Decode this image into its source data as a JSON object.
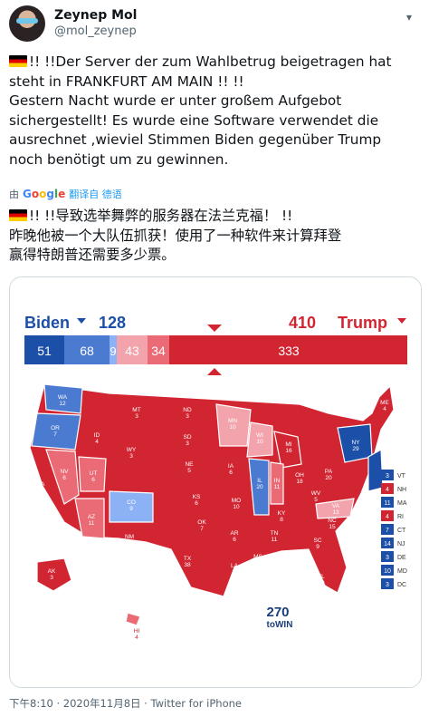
{
  "author": {
    "display_name": "Zeynep Mol",
    "handle": "@mol_zeynep"
  },
  "tweet": {
    "de_lines": [
      "!! !!Der Server der zum Wahlbetrug beigetragen hat",
      "steht in FRANKFURT AM MAIN !! !!",
      "Gestern Nacht wurde er unter großem Aufgebot",
      "sichergestellt! Es wurde eine Software verwendet die",
      "ausrechnet ,wieviel Stimmen Biden gegenüber Trump",
      "noch benötigt um zu gewinnen."
    ],
    "translate_prefix": "由",
    "translate_link": "翻译自 德语",
    "zh_lines": [
      "!! !!导致选举舞弊的服务器在法兰克福！ !!",
      "昨晚他被一个大队伍抓获！使用了一种软件来计算拜登",
      "赢得特朗普还需要多少票。"
    ]
  },
  "map_image": {
    "biden_label": "Biden",
    "biden_total": "128",
    "trump_label": "Trump",
    "trump_total": "410",
    "bar_segments": [
      "51",
      "68",
      "9",
      "43",
      "34",
      "333"
    ],
    "center_mark": "270",
    "logo_line1": "270",
    "logo_line2": "toWIN",
    "state_labels": [
      {
        "s": "WA",
        "n": "12"
      },
      {
        "s": "OR",
        "n": "7"
      },
      {
        "s": "CA",
        "n": "55"
      },
      {
        "s": "NV",
        "n": "6"
      },
      {
        "s": "ID",
        "n": "4"
      },
      {
        "s": "MT",
        "n": "3"
      },
      {
        "s": "WY",
        "n": "3"
      },
      {
        "s": "UT",
        "n": "6"
      },
      {
        "s": "AZ",
        "n": "11"
      },
      {
        "s": "CO",
        "n": "9"
      },
      {
        "s": "NM",
        "n": "5"
      },
      {
        "s": "ND",
        "n": "3"
      },
      {
        "s": "SD",
        "n": "3"
      },
      {
        "s": "NE",
        "n": "5"
      },
      {
        "s": "KS",
        "n": "6"
      },
      {
        "s": "OK",
        "n": "7"
      },
      {
        "s": "TX",
        "n": "38"
      },
      {
        "s": "MN",
        "n": "10"
      },
      {
        "s": "IA",
        "n": "6"
      },
      {
        "s": "MO",
        "n": "10"
      },
      {
        "s": "AR",
        "n": "6"
      },
      {
        "s": "LA",
        "n": "8"
      },
      {
        "s": "WI",
        "n": "10"
      },
      {
        "s": "IL",
        "n": "20"
      },
      {
        "s": "MI",
        "n": "16"
      },
      {
        "s": "IN",
        "n": "11"
      },
      {
        "s": "OH",
        "n": "18"
      },
      {
        "s": "KY",
        "n": "8"
      },
      {
        "s": "TN",
        "n": "11"
      },
      {
        "s": "MS",
        "n": "6"
      },
      {
        "s": "AL",
        "n": "9"
      },
      {
        "s": "GA",
        "n": "16"
      },
      {
        "s": "FL",
        "n": "29"
      },
      {
        "s": "SC",
        "n": "9"
      },
      {
        "s": "NC",
        "n": "15"
      },
      {
        "s": "VA",
        "n": "13"
      },
      {
        "s": "WV",
        "n": "5"
      },
      {
        "s": "PA",
        "n": "20"
      },
      {
        "s": "NY",
        "n": "29"
      },
      {
        "s": "ME",
        "n": "4"
      },
      {
        "s": "AK",
        "n": "3"
      },
      {
        "s": "HI",
        "n": "4"
      }
    ],
    "small_states": [
      {
        "n": "3",
        "s": "VT",
        "c": "blue"
      },
      {
        "n": "4",
        "s": "NH",
        "c": "red"
      },
      {
        "n": "11",
        "s": "MA",
        "c": "blue"
      },
      {
        "n": "4",
        "s": "RI",
        "c": "red"
      },
      {
        "n": "7",
        "s": "CT",
        "c": "blue"
      },
      {
        "n": "14",
        "s": "NJ",
        "c": "blue"
      },
      {
        "n": "3",
        "s": "DE",
        "c": "blue"
      },
      {
        "n": "10",
        "s": "MD",
        "c": "blue"
      },
      {
        "n": "3",
        "s": "DC",
        "c": "blue"
      }
    ]
  },
  "footer": {
    "timestamp": "下午8:10 · 2020年11月8日",
    "source": "Twitter for iPhone"
  },
  "colors": {
    "dark_blue": "#1c4fa8",
    "mid_blue": "#4b7bd1",
    "light_blue": "#8cb1f5",
    "dark_red": "#d22532",
    "mid_red": "#ea6b76",
    "light_red": "#f3a3ab",
    "text_gray": "#536471"
  }
}
